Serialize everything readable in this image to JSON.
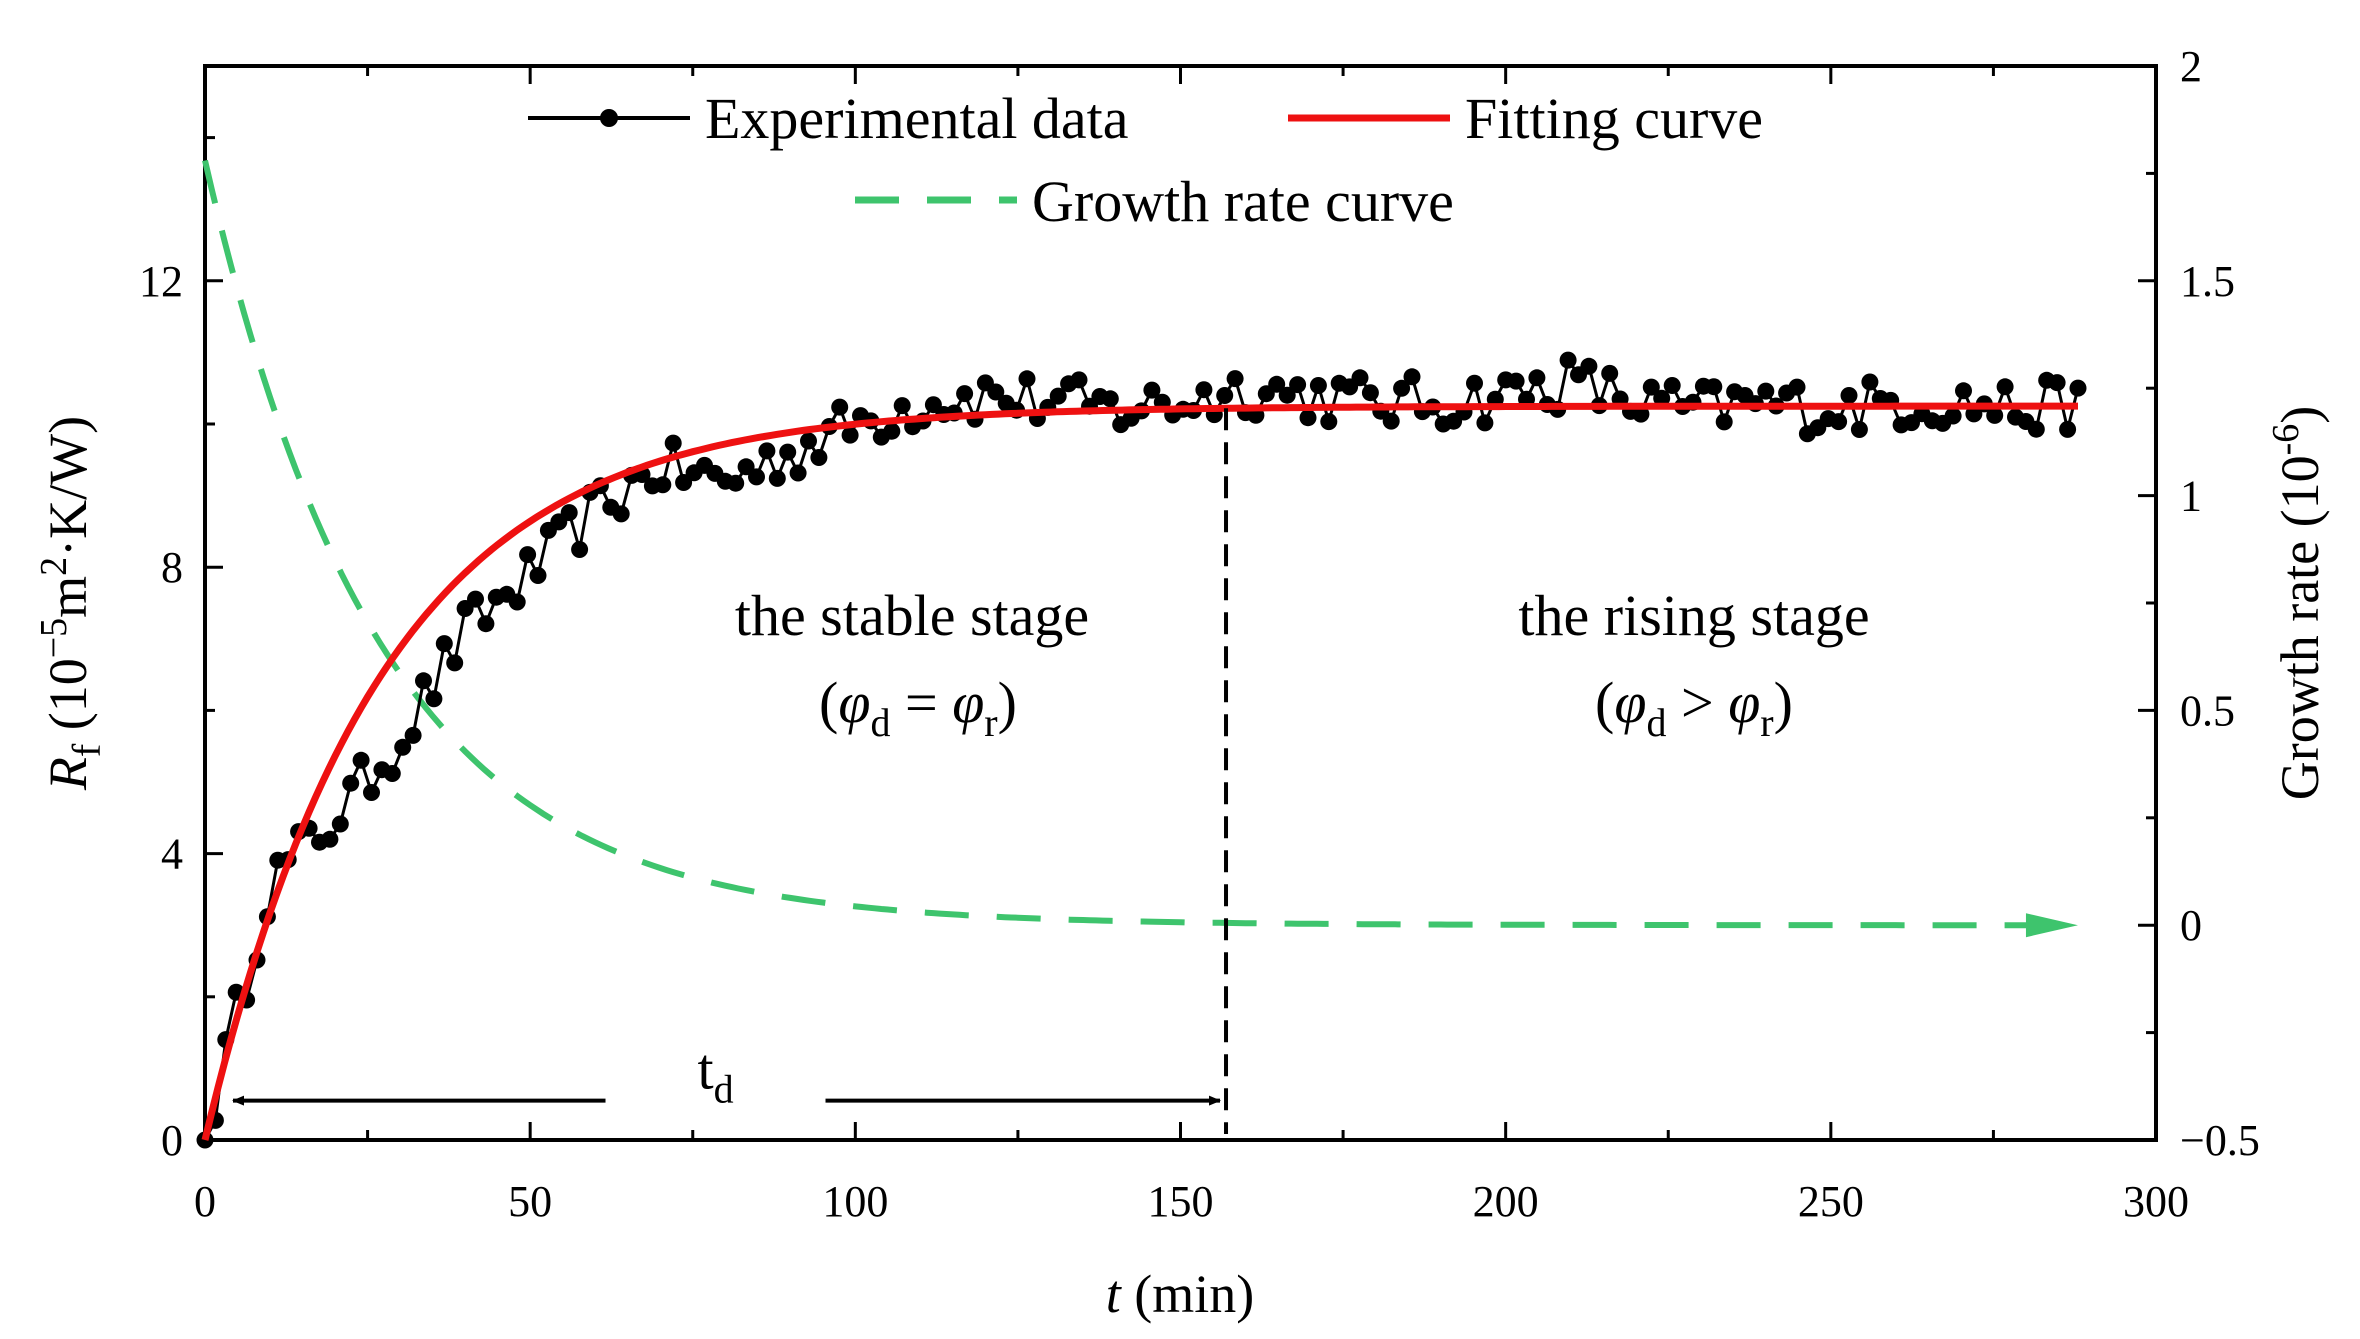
{
  "chart_data": {
    "type": "line",
    "x_axis": {
      "label_italic": "t",
      "label_rest": " (min)",
      "range": [
        0,
        300
      ],
      "ticks": [
        0,
        50,
        100,
        150,
        200,
        250,
        300
      ],
      "tick_labels": [
        "0",
        "50",
        "100",
        "150",
        "200",
        "250",
        "300"
      ]
    },
    "y_axis_left": {
      "label_symbol": "R",
      "label_symbol_sub": "f",
      "label_unit_a": " (10",
      "label_unit_sup1": "−5",
      "label_unit_b": "m",
      "label_unit_sup2": "2",
      "label_unit_c": "·K/W)",
      "range": [
        0,
        15
      ],
      "ticks": [
        0,
        4,
        8,
        12
      ],
      "tick_labels": [
        "0",
        "4",
        "8",
        "12"
      ]
    },
    "y_axis_right": {
      "label_a": "Growth rate (10",
      "label_sup": "-6",
      "label_b": ")",
      "range": [
        -0.5,
        2
      ],
      "ticks": [
        -0.5,
        0,
        0.5,
        1,
        1.5,
        2
      ],
      "tick_labels": [
        "−0.5",
        "0",
        "0.5",
        "1",
        "1.5",
        "2"
      ]
    },
    "legend": {
      "position": "top-center",
      "experimental": "Experimental data",
      "fitting": "Fitting curve",
      "growth": "Growth rate curve"
    },
    "series": [
      {
        "name": "Experimental data",
        "axis": "left",
        "style": "black line with circle markers",
        "x": [
          0,
          10,
          20,
          30,
          40,
          50,
          60,
          70,
          80,
          90,
          100,
          110,
          120,
          130,
          140,
          150,
          160,
          170,
          180,
          190,
          200,
          210,
          220,
          230,
          240,
          250,
          260,
          270,
          280,
          288
        ],
        "y": [
          0,
          3.6,
          4.5,
          5.6,
          7.1,
          7.9,
          8.8,
          9.4,
          9.2,
          9.6,
          10.0,
          10.3,
          10.4,
          10.3,
          10.2,
          10.3,
          10.5,
          10.4,
          10.3,
          10.3,
          10.4,
          10.6,
          10.3,
          10.2,
          10.3,
          10.2,
          10.3,
          10.3,
          10.2,
          10.3
        ]
      },
      {
        "name": "Fitting curve",
        "axis": "left",
        "style": "red solid",
        "model": "Rf = a * (1 - exp(-t / tau))",
        "a": 10.25,
        "tau": 27,
        "x_range": [
          0,
          288
        ]
      },
      {
        "name": "Growth rate curve",
        "axis": "right",
        "style": "green dashed, ends with arrowhead",
        "model": "rate = a0 * exp(-t / tau)",
        "a0": 1.78,
        "tau": 27,
        "x_range": [
          0,
          288
        ]
      }
    ],
    "annotations": {
      "divider_x": 157,
      "stable_line1": "the stable stage",
      "stable_line2": {
        "phi_left": "φ",
        "sub_left": "d",
        "op": " = ",
        "phi_right": "φ",
        "sub_right": "r"
      },
      "rising_line1": "the rising stage",
      "rising_line2": {
        "phi_left": "φ",
        "sub_left": "d",
        "op": " > ",
        "phi_right": "φ",
        "sub_right": "r"
      },
      "td_label": "t",
      "td_sub": "d",
      "td_arrow_from": 0,
      "td_arrow_to": 157,
      "td_level": 0.55
    },
    "colors": {
      "experimental": "#000000",
      "fitting": "#ee1111",
      "growth": "#3ec46d",
      "axes": "#000000"
    }
  }
}
